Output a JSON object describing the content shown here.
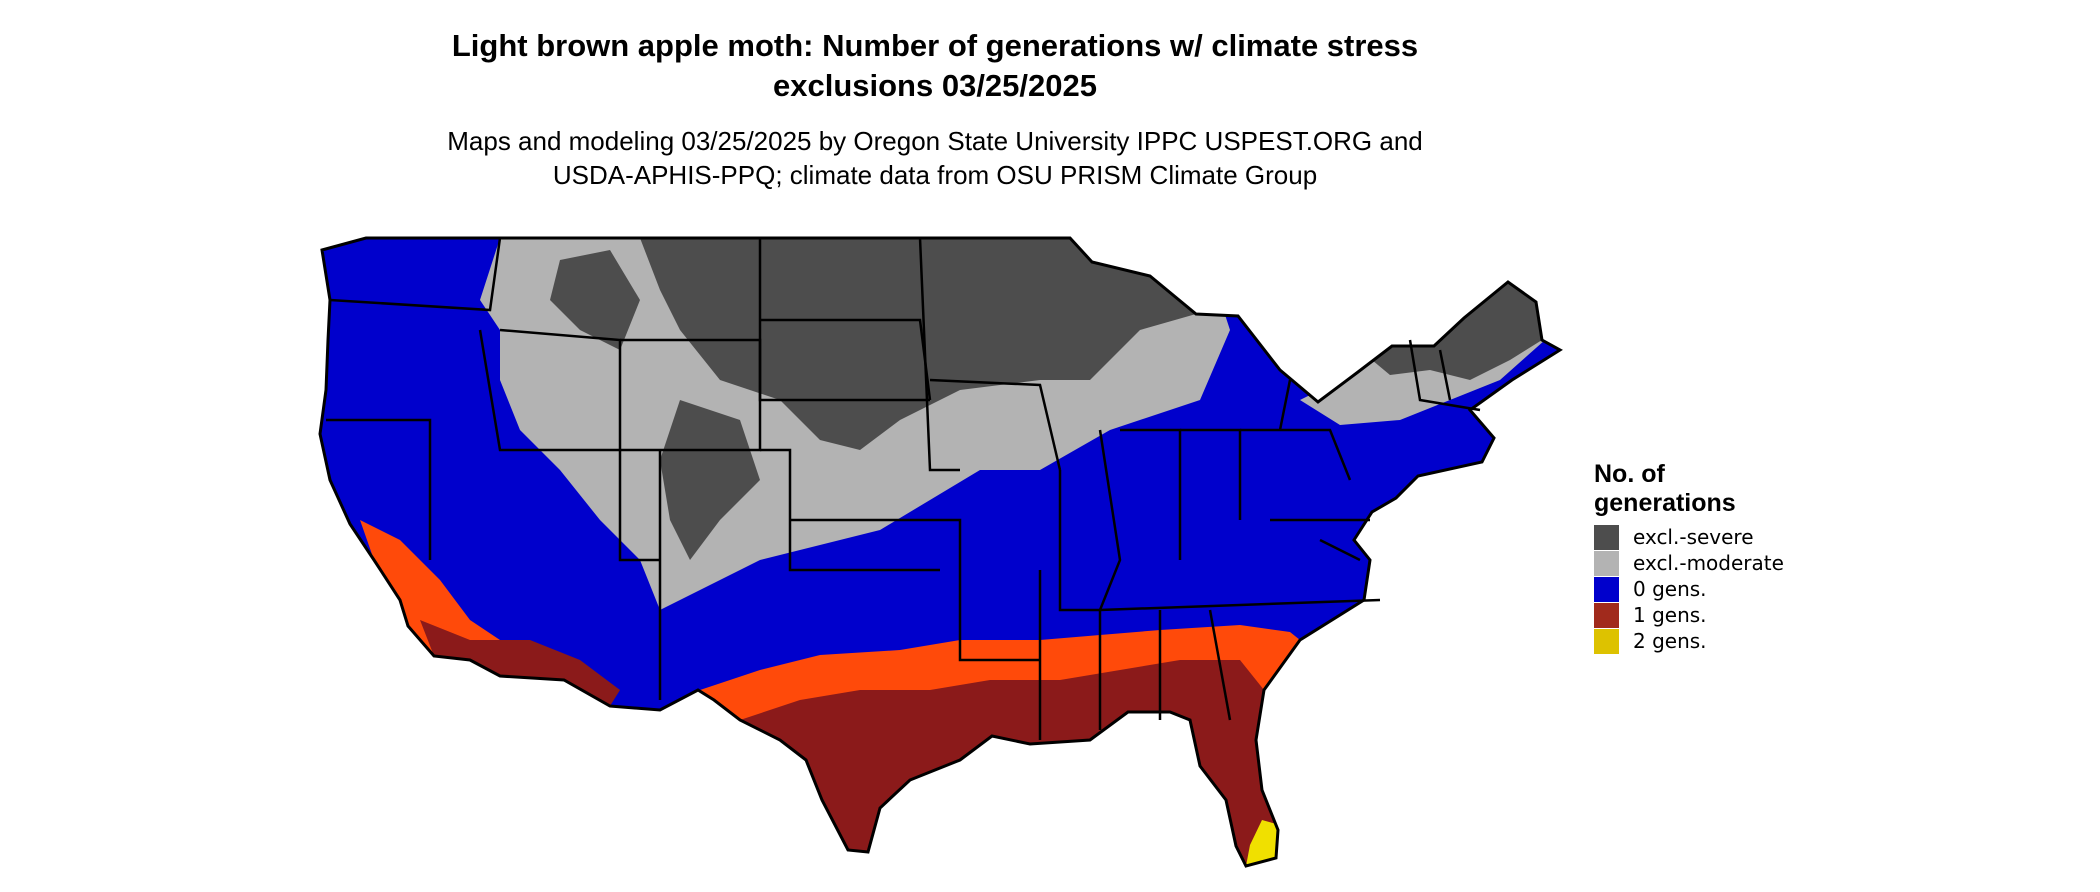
{
  "title": {
    "line1": "Light brown apple moth: Number of generations w/ climate stress",
    "line2": "exclusions 03/25/2025"
  },
  "subtitle": {
    "line1": "Maps and modeling 03/25/2025 by Oregon State University IPPC USPEST.ORG and",
    "line2": "USDA-APHIS-PPQ; climate data from OSU PRISM Climate Group"
  },
  "legend": {
    "title_line1": "No. of",
    "title_line2": "generations",
    "items": [
      {
        "label": "excl.-severe",
        "color": "#4d4d4d"
      },
      {
        "label": "excl.-moderate",
        "color": "#b3b3b3"
      },
      {
        "label": "0 gens.",
        "color": "#0000cc"
      },
      {
        "label": "1 gens.",
        "color": "#a12a1c"
      },
      {
        "label": "2 gens.",
        "color": "#ddc200"
      }
    ]
  },
  "palette": {
    "severe": "#4d4d4d",
    "moderate": "#b3b3b3",
    "zero": "#0000cc",
    "one_dark": "#8b1a1a",
    "one_light": "#ff4a0a",
    "two": "#f0e000",
    "border": "#000000"
  }
}
